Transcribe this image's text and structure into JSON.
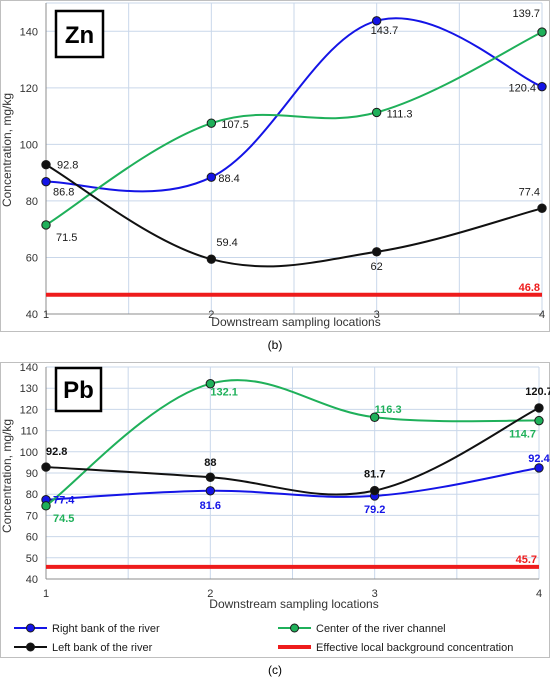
{
  "colors": {
    "right_bank": "#1414e6",
    "center": "#1fb05a",
    "left_bank": "#111111",
    "background": "#ee1c1c",
    "grid": "#c9d7ea"
  },
  "chart_data": [
    {
      "type": "line",
      "panel_tag": "Zn",
      "caption": "(b)",
      "xlabel": "Downstream sampling locations",
      "ylabel": "Concentration, mg/kg",
      "x": [
        1,
        2,
        3,
        4
      ],
      "xlim": [
        1,
        4
      ],
      "ylim": [
        40,
        150
      ],
      "yticks": [
        40,
        60,
        80,
        100,
        120,
        140
      ],
      "smooth": true,
      "grid": true,
      "series": [
        {
          "key": "right_bank",
          "name": "Right bank of the river",
          "values": [
            86.8,
            88.4,
            143.7,
            120.4
          ],
          "labels": [
            "86.8",
            "88.4",
            "143.7",
            "120.4"
          ]
        },
        {
          "key": "center",
          "name": "Center of the river channel",
          "values": [
            71.5,
            107.5,
            111.3,
            139.7
          ],
          "labels": [
            "71.5",
            "107.5",
            "111.3",
            "139.7"
          ]
        },
        {
          "key": "left_bank",
          "name": "Left bank of the river",
          "values": [
            92.8,
            59.4,
            62,
            77.4
          ],
          "labels": [
            "92.8",
            "59.4",
            "62",
            "77.4"
          ]
        }
      ],
      "reference_line": {
        "key": "background",
        "name": "Effective local background concentration",
        "value": 46.8,
        "label": "46.8"
      }
    },
    {
      "type": "line",
      "panel_tag": "Pb",
      "caption": "(c)",
      "xlabel": "Downstream sampling locations",
      "ylabel": "Concentration, mg/kg",
      "x": [
        1,
        2,
        3,
        4
      ],
      "xlim": [
        1,
        4
      ],
      "ylim": [
        40,
        140
      ],
      "yticks": [
        40,
        50,
        60,
        70,
        80,
        90,
        100,
        110,
        120,
        130,
        140
      ],
      "smooth": true,
      "grid": true,
      "series": [
        {
          "key": "right_bank",
          "name": "Right bank of the river",
          "values": [
            77.4,
            81.6,
            79.2,
            92.4
          ],
          "labels": [
            "77.4",
            "81.6",
            "79.2",
            "92.4"
          ]
        },
        {
          "key": "center",
          "name": "Center of the river channel",
          "values": [
            74.5,
            132.1,
            116.3,
            114.7
          ],
          "labels": [
            "74.5",
            "132.1",
            "116.3",
            "114.7"
          ]
        },
        {
          "key": "left_bank",
          "name": "Left bank of the river",
          "values": [
            92.8,
            88,
            81.7,
            120.7
          ],
          "labels": [
            "92.8",
            "88",
            "81.7",
            "120.7"
          ]
        }
      ],
      "reference_line": {
        "key": "background",
        "name": "Effective local background concentration",
        "value": 45.7,
        "label": "45.7"
      }
    }
  ],
  "legend": [
    {
      "key": "right_bank",
      "label": "Right bank of the river",
      "marker": true
    },
    {
      "key": "center",
      "label": "Center of the river channel",
      "marker": true
    },
    {
      "key": "left_bank",
      "label": "Left bank of the river",
      "marker": true
    },
    {
      "key": "background",
      "label": "Effective local background concentration",
      "marker": false
    }
  ]
}
